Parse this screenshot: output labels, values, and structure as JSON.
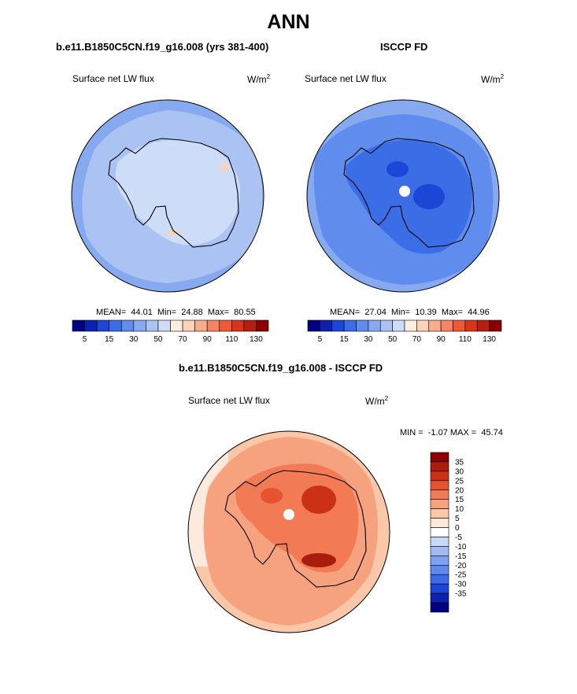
{
  "page_title": "ANN",
  "colors": {
    "base_bins": [
      "#000080",
      "#0b21b0",
      "#1c46d6",
      "#3b6ee6",
      "#5f8ced",
      "#87a9f0",
      "#abc3f3",
      "#cddcf7",
      "#ffeedd",
      "#fcd2b8",
      "#f8ad8b",
      "#f58560",
      "#ee5a34",
      "#d8341a",
      "#b41f10",
      "#8b0000"
    ],
    "diff_bins": [
      "#000080",
      "#0b21b0",
      "#1c46d6",
      "#3c6ae8",
      "#5d88ed",
      "#7fa1f1",
      "#a2bbf4",
      "#c7d8f8",
      "#ffffff",
      "#fdeadc",
      "#fbc7a9",
      "#f7a27f",
      "#f27b56",
      "#e65330",
      "#cc3116",
      "#a91d0c",
      "#8b0000"
    ]
  },
  "chart_data": [
    {
      "type": "heatmap",
      "title": "b.e11.B1850C5CN.f19_g16.008 (yrs 381-400)",
      "variable": "Surface net LW flux",
      "units": "W/m2",
      "stats": {
        "mean": "44.01",
        "min": "24.88",
        "max": "80.55"
      },
      "stats_text": "MEAN=  44.01  Min=  24.88  Max=  80.55",
      "colorbar": {
        "levels": [
          0,
          5,
          10,
          15,
          20,
          30,
          40,
          50,
          60,
          70,
          80,
          90,
          100,
          110,
          120,
          130,
          140
        ],
        "tick_labels": [
          "5",
          "15",
          "30",
          "50",
          "70",
          "90",
          "110",
          "130"
        ]
      }
    },
    {
      "type": "heatmap",
      "title": "ISCCP FD",
      "variable": "Surface net LW flux",
      "units": "W/m2",
      "stats": {
        "mean": "27.04",
        "min": "10.39",
        "max": "44.96"
      },
      "stats_text": "MEAN=  27.04  Min=  10.39  Max=  44.96",
      "colorbar": {
        "levels": [
          0,
          5,
          10,
          15,
          20,
          30,
          40,
          50,
          60,
          70,
          80,
          90,
          100,
          110,
          120,
          130,
          140
        ],
        "tick_labels": [
          "5",
          "15",
          "30",
          "50",
          "70",
          "90",
          "110",
          "130"
        ]
      }
    },
    {
      "type": "heatmap",
      "title": "b.e11.B1850C5CN.f19_g16.008 - ISCCP FD",
      "variable": "Surface net LW flux",
      "units": "W/m2",
      "stats": {
        "min": "-1.07",
        "max": "45.74"
      },
      "stats_text": "MIN =  -1.07 MAX =  45.74",
      "colorbar": {
        "orientation": "vertical",
        "tick_labels": [
          "35",
          "30",
          "25",
          "20",
          "15",
          "10",
          "5",
          "0",
          "-5",
          "-10",
          "-15",
          "-20",
          "-25",
          "-30",
          "-35"
        ]
      }
    }
  ]
}
